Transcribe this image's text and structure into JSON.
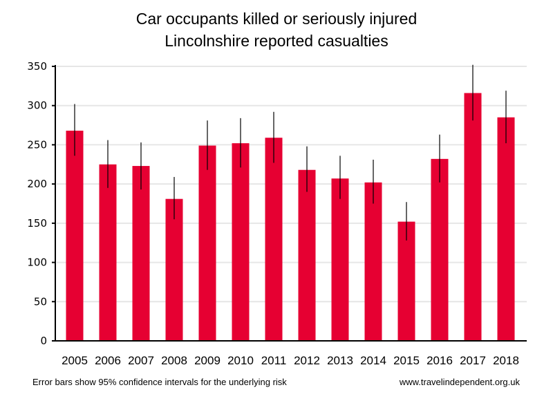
{
  "chart_data": {
    "type": "bar",
    "title": "Car occupants killed or seriously injured",
    "subtitle": "Lincolnshire reported casualties",
    "xlabel": "",
    "ylabel": "",
    "ylim": [
      0,
      350
    ],
    "yticks": [
      0,
      50,
      100,
      150,
      200,
      250,
      300,
      350
    ],
    "grid": true,
    "legend": "none",
    "categories": [
      "2005",
      "2006",
      "2007",
      "2008",
      "2009",
      "2010",
      "2011",
      "2012",
      "2013",
      "2014",
      "2015",
      "2016",
      "2017",
      "2018"
    ],
    "series": [
      {
        "name": "Car occupants KSI",
        "color": "#e60032",
        "values": [
          268,
          225,
          223,
          181,
          249,
          252,
          259,
          218,
          207,
          202,
          152,
          232,
          316,
          285
        ],
        "error_low": [
          236,
          195,
          193,
          155,
          218,
          221,
          227,
          190,
          181,
          175,
          128,
          202,
          281,
          252
        ],
        "error_high": [
          302,
          256,
          253,
          209,
          281,
          284,
          292,
          248,
          236,
          231,
          177,
          263,
          352,
          319
        ]
      }
    ]
  },
  "footnotes": {
    "left": "Error bars show 95% confidence intervals for the underlying risk",
    "right": "www.travelindependent.org.uk"
  },
  "colors": {
    "bar": "#e60032",
    "grid": "#e6e6e6",
    "axis": "#000000",
    "error_bar": "#000000"
  }
}
